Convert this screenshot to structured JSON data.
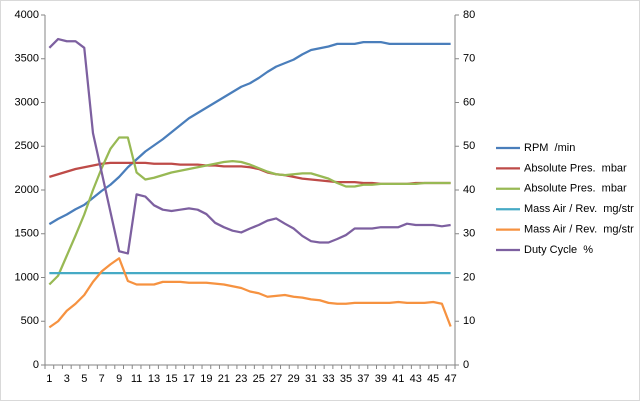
{
  "chart_data": {
    "type": "line",
    "categories": [
      1,
      null,
      3,
      null,
      5,
      null,
      7,
      null,
      9,
      null,
      11,
      null,
      13,
      null,
      15,
      null,
      17,
      null,
      19,
      null,
      21,
      null,
      23,
      null,
      25,
      null,
      27,
      null,
      29,
      null,
      31,
      null,
      33,
      null,
      35,
      null,
      37,
      null,
      39,
      null,
      41,
      null,
      43,
      null,
      45,
      null,
      47
    ],
    "ylim": [
      0,
      4000
    ],
    "yticks": [
      0,
      500,
      1000,
      1500,
      2000,
      2500,
      3000,
      3500,
      4000
    ],
    "y2lim": [
      0,
      80
    ],
    "y2ticks": [
      0,
      10,
      20,
      30,
      40,
      50,
      60,
      70,
      80
    ],
    "grid": false,
    "legend": "right",
    "series": [
      {
        "name": "RPM  /min",
        "color": "#4a7ebb",
        "values": [
          1610,
          1670,
          1720,
          1780,
          1830,
          1910,
          1990,
          2060,
          2150,
          2260,
          2350,
          2440,
          2510,
          2580,
          2660,
          2740,
          2820,
          2880,
          2940,
          3000,
          3060,
          3120,
          3180,
          3220,
          3280,
          3350,
          3410,
          3450,
          3490,
          3550,
          3600,
          3620,
          3640,
          3670,
          3670,
          3670,
          3690,
          3690,
          3690,
          3670,
          3670,
          3670,
          3670,
          3670,
          3670,
          3670,
          3670
        ]
      },
      {
        "name": "Absolute Pres.  mbar",
        "color": "#be4b48",
        "values": [
          2150,
          2180,
          2210,
          2240,
          2260,
          2280,
          2300,
          2310,
          2310,
          2310,
          2310,
          2310,
          2300,
          2300,
          2300,
          2290,
          2290,
          2290,
          2280,
          2280,
          2270,
          2270,
          2270,
          2260,
          2240,
          2200,
          2180,
          2170,
          2150,
          2130,
          2120,
          2110,
          2100,
          2090,
          2090,
          2090,
          2080,
          2080,
          2070,
          2070,
          2070,
          2070,
          2080,
          2080,
          2080,
          2080,
          2080
        ]
      },
      {
        "name": "Absolute Pres.  mbar",
        "color": "#98b954",
        "values": [
          920,
          1020,
          1250,
          1480,
          1720,
          2000,
          2250,
          2470,
          2600,
          2600,
          2200,
          2120,
          2140,
          2170,
          2200,
          2220,
          2240,
          2260,
          2280,
          2300,
          2320,
          2330,
          2320,
          2290,
          2250,
          2210,
          2180,
          2170,
          2180,
          2190,
          2190,
          2160,
          2130,
          2080,
          2040,
          2040,
          2060,
          2060,
          2070,
          2070,
          2070,
          2070,
          2070,
          2080,
          2080,
          2080,
          2080
        ]
      },
      {
        "name": "Mass Air / Rev.  mg/str",
        "color": "#46aac5",
        "values": [
          1050,
          1050,
          1050,
          1050,
          1050,
          1050,
          1050,
          1050,
          1050,
          1050,
          1050,
          1050,
          1050,
          1050,
          1050,
          1050,
          1050,
          1050,
          1050,
          1050,
          1050,
          1050,
          1050,
          1050,
          1050,
          1050,
          1050,
          1050,
          1050,
          1050,
          1050,
          1050,
          1050,
          1050,
          1050,
          1050,
          1050,
          1050,
          1050,
          1050,
          1050,
          1050,
          1050,
          1050,
          1050,
          1050,
          1050
        ]
      },
      {
        "name": "Mass Air / Rev.  mg/str",
        "color": "#f69240",
        "values": [
          430,
          500,
          620,
          700,
          800,
          950,
          1070,
          1150,
          1220,
          960,
          920,
          920,
          920,
          950,
          950,
          950,
          940,
          940,
          940,
          930,
          920,
          900,
          880,
          840,
          820,
          780,
          790,
          800,
          780,
          770,
          750,
          740,
          710,
          700,
          700,
          710,
          710,
          710,
          710,
          710,
          720,
          710,
          710,
          710,
          720,
          700,
          440
        ]
      },
      {
        "name": "Duty Cycle  %",
        "color": "#7d60a0",
        "axis": "y2",
        "values": [
          72.5,
          74.5,
          74,
          74,
          72.5,
          53,
          44,
          35,
          26,
          25.5,
          39,
          38.5,
          36.5,
          35.5,
          35.2,
          35.5,
          35.8,
          35.5,
          34.5,
          32.5,
          31.5,
          30.7,
          30.3,
          31.2,
          32,
          33,
          33.5,
          32.3,
          31.2,
          29.5,
          28.3,
          28,
          28,
          28.8,
          29.7,
          31.2,
          31.2,
          31.2,
          31.5,
          31.5,
          31.5,
          32.3,
          32,
          32,
          32,
          31.7,
          32
        ]
      }
    ]
  }
}
